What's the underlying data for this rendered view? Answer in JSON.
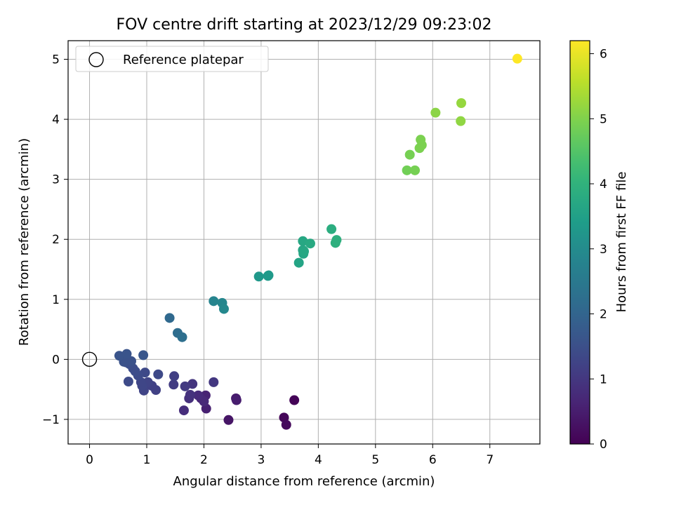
{
  "chart_data": {
    "type": "scatter",
    "title": "FOV centre drift starting at 2023/12/29 09:23:02",
    "xlabel": "Angular distance from reference (arcmin)",
    "ylabel": "Rotation from reference (arcmin)",
    "xlim": [
      -0.375,
      7.875
    ],
    "ylim": [
      -1.41,
      5.31
    ],
    "xticks": [
      0,
      1,
      2,
      3,
      4,
      5,
      6,
      7
    ],
    "xtick_labels": [
      "0",
      "1",
      "2",
      "3",
      "4",
      "5",
      "6",
      "7"
    ],
    "yticks": [
      -1,
      0,
      1,
      2,
      3,
      4,
      5
    ],
    "ytick_labels": [
      "−1",
      "0",
      "1",
      "2",
      "3",
      "4",
      "5"
    ],
    "grid": true,
    "legend_position": "top-left",
    "legend": [
      {
        "label": "Reference platepar",
        "marker": "open-circle"
      }
    ],
    "reference_point": {
      "x": 0,
      "y": 0
    },
    "colorbar": {
      "label": "Hours from first FF file",
      "min": 0,
      "max": 6.2,
      "ticks": [
        0,
        1,
        2,
        3,
        4,
        5,
        6
      ],
      "tick_labels": [
        "0",
        "1",
        "2",
        "3",
        "4",
        "5",
        "6"
      ],
      "colormap": "viridis"
    },
    "points": [
      {
        "x": 3.58,
        "y": -0.68,
        "h": 0.05
      },
      {
        "x": 3.4,
        "y": -0.97,
        "h": 0.1
      },
      {
        "x": 3.44,
        "y": -1.09,
        "h": 0.15
      },
      {
        "x": 2.43,
        "y": -1.01,
        "h": 0.35
      },
      {
        "x": 2.56,
        "y": -0.65,
        "h": 0.45
      },
      {
        "x": 2.57,
        "y": -0.68,
        "h": 0.5
      },
      {
        "x": 2.04,
        "y": -0.82,
        "h": 0.55
      },
      {
        "x": 2.03,
        "y": -0.6,
        "h": 0.6
      },
      {
        "x": 1.95,
        "y": -0.65,
        "h": 0.65
      },
      {
        "x": 2.0,
        "y": -0.7,
        "h": 0.7
      },
      {
        "x": 1.9,
        "y": -0.6,
        "h": 0.75
      },
      {
        "x": 1.65,
        "y": -0.85,
        "h": 0.8
      },
      {
        "x": 1.74,
        "y": -0.65,
        "h": 0.85
      },
      {
        "x": 1.76,
        "y": -0.59,
        "h": 0.9
      },
      {
        "x": 1.8,
        "y": -0.41,
        "h": 0.95
      },
      {
        "x": 2.17,
        "y": -0.38,
        "h": 1.0
      },
      {
        "x": 1.67,
        "y": -0.45,
        "h": 1.05
      },
      {
        "x": 1.47,
        "y": -0.42,
        "h": 1.1
      },
      {
        "x": 1.48,
        "y": -0.28,
        "h": 1.15
      },
      {
        "x": 1.16,
        "y": -0.51,
        "h": 1.2
      },
      {
        "x": 1.09,
        "y": -0.44,
        "h": 1.2
      },
      {
        "x": 1.02,
        "y": -0.38,
        "h": 1.25
      },
      {
        "x": 0.95,
        "y": -0.52,
        "h": 1.25
      },
      {
        "x": 0.92,
        "y": -0.44,
        "h": 1.3
      },
      {
        "x": 0.9,
        "y": -0.38,
        "h": 1.3
      },
      {
        "x": 0.97,
        "y": -0.22,
        "h": 1.35
      },
      {
        "x": 1.2,
        "y": -0.25,
        "h": 1.35
      },
      {
        "x": 0.68,
        "y": -0.37,
        "h": 1.4
      },
      {
        "x": 0.85,
        "y": -0.27,
        "h": 1.4
      },
      {
        "x": 0.8,
        "y": -0.2,
        "h": 1.45
      },
      {
        "x": 0.76,
        "y": -0.15,
        "h": 1.45
      },
      {
        "x": 0.7,
        "y": -0.08,
        "h": 1.5
      },
      {
        "x": 0.64,
        "y": -0.05,
        "h": 1.5
      },
      {
        "x": 0.6,
        "y": -0.04,
        "h": 1.55
      },
      {
        "x": 0.73,
        "y": -0.03,
        "h": 1.55
      },
      {
        "x": 0.52,
        "y": 0.06,
        "h": 1.6
      },
      {
        "x": 0.65,
        "y": 0.09,
        "h": 1.6
      },
      {
        "x": 0.94,
        "y": 0.07,
        "h": 1.65
      },
      {
        "x": 1.4,
        "y": 0.69,
        "h": 2.1
      },
      {
        "x": 1.54,
        "y": 0.44,
        "h": 2.2
      },
      {
        "x": 1.62,
        "y": 0.37,
        "h": 2.25
      },
      {
        "x": 2.17,
        "y": 0.97,
        "h": 2.8
      },
      {
        "x": 2.32,
        "y": 0.94,
        "h": 2.85
      },
      {
        "x": 2.35,
        "y": 0.84,
        "h": 2.9
      },
      {
        "x": 2.96,
        "y": 1.38,
        "h": 3.3
      },
      {
        "x": 3.12,
        "y": 1.39,
        "h": 3.35
      },
      {
        "x": 3.13,
        "y": 1.4,
        "h": 3.35
      },
      {
        "x": 3.66,
        "y": 1.61,
        "h": 3.6
      },
      {
        "x": 3.74,
        "y": 1.76,
        "h": 3.65
      },
      {
        "x": 3.73,
        "y": 1.82,
        "h": 3.65
      },
      {
        "x": 3.75,
        "y": 1.8,
        "h": 3.7
      },
      {
        "x": 3.73,
        "y": 1.97,
        "h": 3.7
      },
      {
        "x": 3.86,
        "y": 1.93,
        "h": 3.75
      },
      {
        "x": 4.23,
        "y": 2.17,
        "h": 3.85
      },
      {
        "x": 4.3,
        "y": 1.94,
        "h": 3.9
      },
      {
        "x": 4.32,
        "y": 1.99,
        "h": 3.9
      },
      {
        "x": 5.55,
        "y": 3.15,
        "h": 4.85
      },
      {
        "x": 5.69,
        "y": 3.15,
        "h": 4.9
      },
      {
        "x": 5.6,
        "y": 3.41,
        "h": 4.9
      },
      {
        "x": 5.77,
        "y": 3.52,
        "h": 4.95
      },
      {
        "x": 5.81,
        "y": 3.57,
        "h": 4.95
      },
      {
        "x": 5.79,
        "y": 3.66,
        "h": 4.95
      },
      {
        "x": 6.05,
        "y": 4.11,
        "h": 5.1
      },
      {
        "x": 6.49,
        "y": 3.97,
        "h": 5.15
      },
      {
        "x": 6.5,
        "y": 4.27,
        "h": 5.2
      },
      {
        "x": 7.48,
        "y": 5.01,
        "h": 6.2
      }
    ]
  }
}
